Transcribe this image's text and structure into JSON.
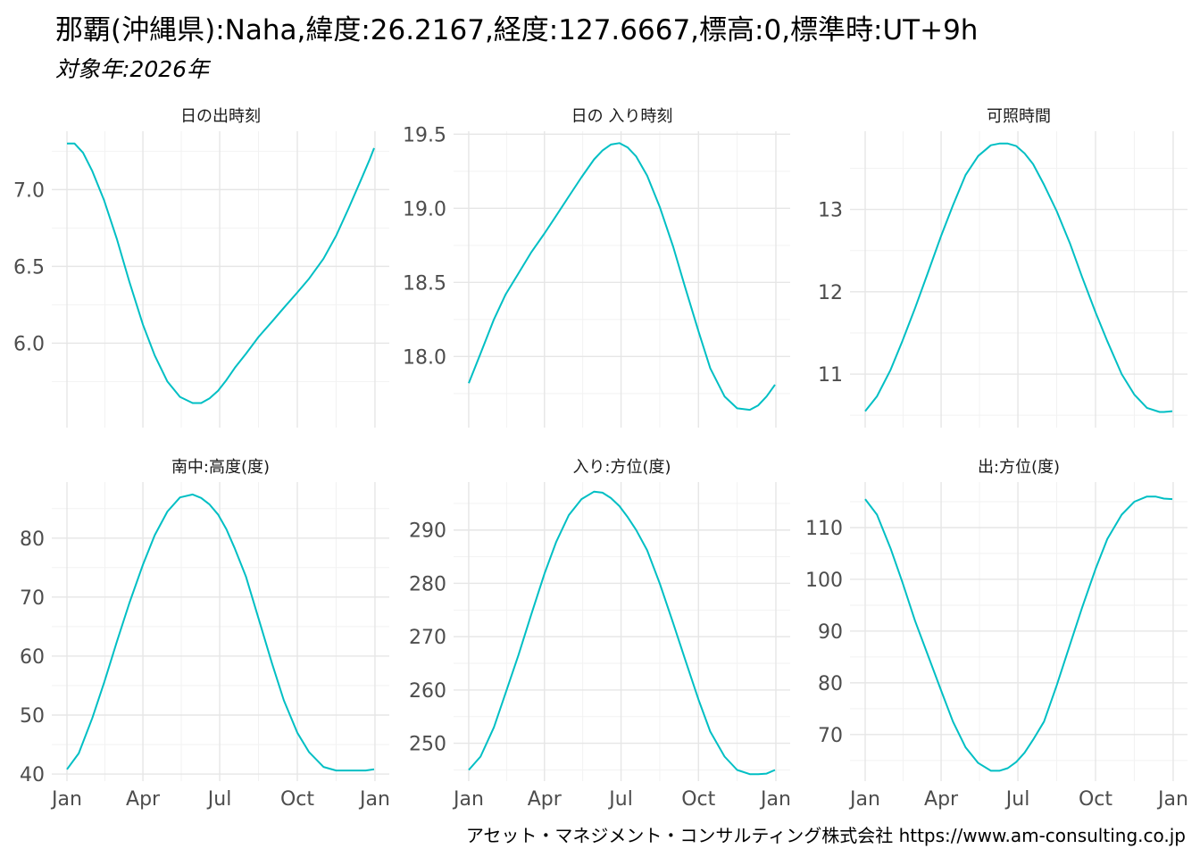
{
  "title": "那覇(沖縄県):Naha,緯度:26.2167,経度:127.6667,標高:0,標準時:UT+9h",
  "subtitle": "対象年:2026年",
  "caption": "アセット・マネジメント・コンサルティング株式会社 https://www.am-consulting.co.jp",
  "line_color": "#00BFC4",
  "chart_data": [
    {
      "type": "line",
      "title": "日の出時刻",
      "x_ticks": [
        "Jan",
        "Apr",
        "Jul",
        "Oct",
        "Jan"
      ],
      "y_ticks": [
        6.0,
        6.5,
        7.0
      ],
      "ylim": [
        5.45,
        7.38
      ],
      "series": [
        {
          "x": [
            1,
            10,
            20,
            31,
            45,
            60,
            75,
            91,
            105,
            120,
            135,
            150,
            160,
            170,
            180,
            190,
            200,
            213,
            228,
            244,
            258,
            274,
            288,
            305,
            320,
            335,
            350,
            360,
            365
          ],
          "values": [
            7.3,
            7.3,
            7.24,
            7.12,
            6.93,
            6.68,
            6.4,
            6.12,
            5.92,
            5.75,
            5.65,
            5.61,
            5.61,
            5.64,
            5.69,
            5.76,
            5.84,
            5.93,
            6.04,
            6.14,
            6.23,
            6.33,
            6.42,
            6.55,
            6.7,
            6.88,
            7.07,
            7.2,
            7.27
          ]
        }
      ]
    },
    {
      "type": "line",
      "title": "日の 入り時刻",
      "x_ticks": [
        "Jan",
        "Apr",
        "Jul",
        "Oct",
        "Jan"
      ],
      "y_ticks": [
        18.0,
        18.5,
        19.0,
        19.5
      ],
      "ylim": [
        17.52,
        19.52
      ],
      "series": [
        {
          "x": [
            1,
            15,
            31,
            45,
            60,
            75,
            91,
            105,
            120,
            135,
            150,
            160,
            170,
            180,
            190,
            200,
            213,
            228,
            244,
            258,
            274,
            288,
            305,
            320,
            335,
            345,
            355,
            365
          ],
          "values": [
            17.82,
            18.02,
            18.25,
            18.42,
            18.56,
            18.7,
            18.83,
            18.95,
            19.08,
            19.21,
            19.33,
            19.39,
            19.43,
            19.44,
            19.41,
            19.35,
            19.22,
            19.01,
            18.74,
            18.47,
            18.17,
            17.92,
            17.73,
            17.65,
            17.64,
            17.67,
            17.73,
            17.81
          ]
        }
      ]
    },
    {
      "type": "line",
      "title": "可照時間",
      "x_ticks": [
        "Jan",
        "Apr",
        "Jul",
        "Oct",
        "Jan"
      ],
      "y_ticks": [
        11,
        12,
        13
      ],
      "ylim": [
        10.35,
        13.95
      ],
      "series": [
        {
          "x": [
            1,
            15,
            31,
            45,
            60,
            75,
            91,
            105,
            120,
            135,
            150,
            160,
            170,
            180,
            190,
            200,
            213,
            228,
            244,
            258,
            274,
            288,
            305,
            320,
            335,
            350,
            355,
            365
          ],
          "values": [
            10.55,
            10.73,
            11.05,
            11.4,
            11.8,
            12.22,
            12.68,
            13.05,
            13.42,
            13.65,
            13.78,
            13.8,
            13.8,
            13.77,
            13.68,
            13.55,
            13.3,
            12.98,
            12.58,
            12.18,
            11.75,
            11.4,
            11.0,
            10.75,
            10.59,
            10.54,
            10.54,
            10.55
          ]
        }
      ]
    },
    {
      "type": "line",
      "title": "南中:高度(度)",
      "x_ticks": [
        "Jan",
        "Apr",
        "Jul",
        "Oct",
        "Jan"
      ],
      "y_ticks": [
        40,
        50,
        60,
        70,
        80
      ],
      "ylim": [
        38.8,
        89.5
      ],
      "series": [
        {
          "x": [
            1,
            15,
            31,
            45,
            60,
            75,
            91,
            105,
            120,
            135,
            150,
            160,
            170,
            180,
            190,
            200,
            213,
            228,
            244,
            258,
            274,
            288,
            305,
            320,
            335,
            345,
            355,
            365
          ],
          "values": [
            40.8,
            43.5,
            49.5,
            55.5,
            62.4,
            69.0,
            75.5,
            80.5,
            84.5,
            86.9,
            87.4,
            86.8,
            85.7,
            84.0,
            81.5,
            78.2,
            73.5,
            66.4,
            58.8,
            52.5,
            47.0,
            43.7,
            41.2,
            40.6,
            40.6,
            40.6,
            40.6,
            40.8
          ]
        }
      ]
    },
    {
      "type": "line",
      "title": "入り:方位(度)",
      "x_ticks": [
        "Jan",
        "Apr",
        "Jul",
        "Oct",
        "Jan"
      ],
      "y_ticks": [
        250,
        260,
        270,
        280,
        290
      ],
      "ylim": [
        242.9,
        299.0
      ],
      "series": [
        {
          "x": [
            1,
            15,
            31,
            45,
            60,
            75,
            91,
            105,
            120,
            135,
            150,
            160,
            170,
            180,
            190,
            200,
            213,
            228,
            244,
            258,
            274,
            288,
            305,
            320,
            335,
            345,
            355,
            365
          ],
          "values": [
            245.0,
            247.5,
            253.0,
            259.5,
            266.5,
            274.0,
            281.8,
            287.8,
            292.8,
            295.8,
            297.2,
            297.0,
            296.0,
            294.5,
            292.4,
            290.0,
            286.2,
            280.0,
            272.5,
            265.8,
            258.2,
            252.2,
            247.5,
            245.0,
            244.2,
            244.2,
            244.3,
            245.0
          ]
        }
      ]
    },
    {
      "type": "line",
      "title": "出:方位(度)",
      "x_ticks": [
        "Jan",
        "Apr",
        "Jul",
        "Oct",
        "Jan"
      ],
      "y_ticks": [
        70,
        80,
        90,
        100,
        110
      ],
      "ylim": [
        61.0,
        118.8
      ],
      "series": [
        {
          "x": [
            1,
            15,
            31,
            45,
            60,
            75,
            91,
            105,
            120,
            135,
            150,
            160,
            170,
            180,
            190,
            200,
            213,
            228,
            244,
            258,
            274,
            288,
            305,
            320,
            335,
            345,
            355,
            365
          ],
          "values": [
            115.5,
            112.5,
            106.0,
            99.5,
            92.0,
            85.5,
            78.5,
            72.5,
            67.5,
            64.5,
            63.0,
            63.0,
            63.5,
            64.7,
            66.5,
            69.0,
            72.5,
            79.5,
            87.5,
            94.5,
            102.0,
            107.8,
            112.5,
            115.0,
            116.0,
            116.0,
            115.6,
            115.5
          ]
        }
      ]
    }
  ]
}
